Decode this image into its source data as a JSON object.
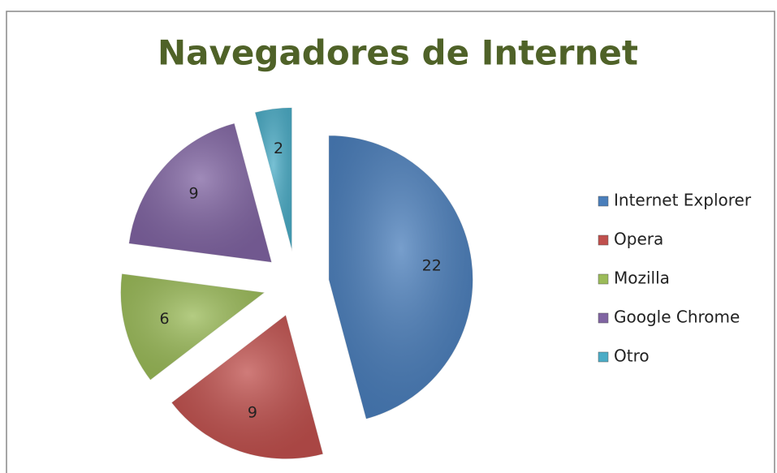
{
  "chart_data": {
    "type": "pie",
    "title": "Navegadores de Internet",
    "categories": [
      "Internet Explorer",
      "Opera",
      "Mozilla",
      "Google Chrome",
      "Otro"
    ],
    "values": [
      22,
      9,
      6,
      9,
      2
    ],
    "colors": [
      "#4a7ebb",
      "#c0504d",
      "#9bbb59",
      "#8064a2",
      "#4bacc6"
    ],
    "legend": "right",
    "exploded": true
  }
}
